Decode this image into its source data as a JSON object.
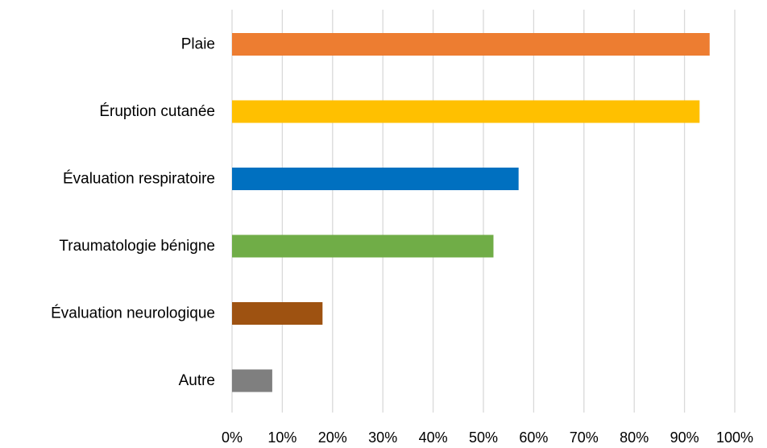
{
  "chart_data": {
    "type": "bar",
    "orientation": "horizontal",
    "categories": [
      "Plaie",
      "Éruption cutanée",
      "Évaluation respiratoire",
      "Traumatologie bénigne",
      "Évaluation neurologique",
      "Autre"
    ],
    "values": [
      95,
      93,
      57,
      52,
      18,
      8
    ],
    "bar_colors": [
      "#ed7d31",
      "#ffc000",
      "#0070c0",
      "#70ad47",
      "#9e5211",
      "#7f7f7f"
    ],
    "xlim": [
      0,
      100
    ],
    "x_ticks": [
      0,
      10,
      20,
      30,
      40,
      50,
      60,
      70,
      80,
      90,
      100
    ],
    "x_tick_labels": [
      "0%",
      "10%",
      "20%",
      "30%",
      "40%",
      "50%",
      "60%",
      "70%",
      "80%",
      "90%",
      "100%"
    ],
    "grid": "vertical",
    "legend": "none"
  }
}
